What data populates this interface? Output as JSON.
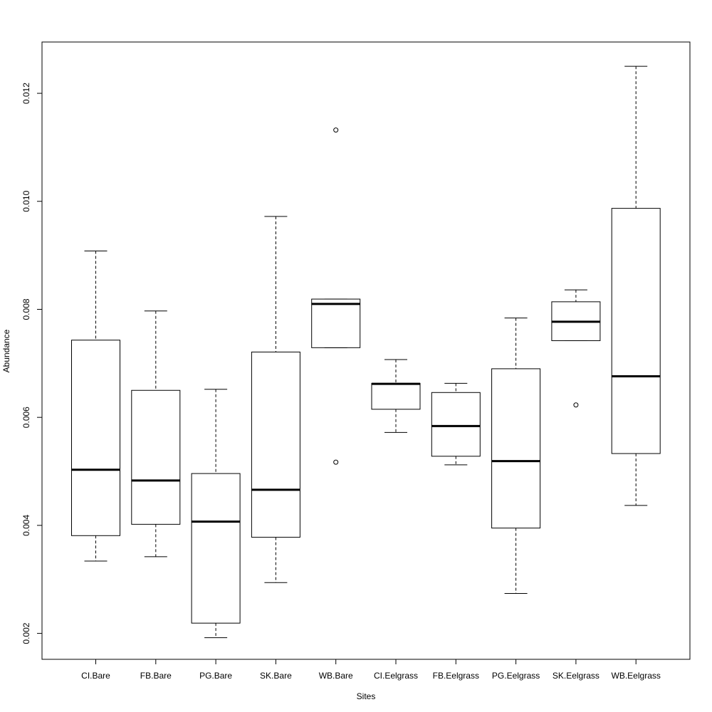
{
  "chart_data": {
    "type": "boxplot",
    "title": "",
    "xlabel": "Sites",
    "ylabel": "Abundance",
    "ylim": [
      0.00152,
      0.01295
    ],
    "yticks": [
      0.002,
      0.004,
      0.006,
      0.008,
      0.01,
      0.012
    ],
    "ytick_labels": [
      "0.002",
      "0.004",
      "0.006",
      "0.008",
      "0.010",
      "0.012"
    ],
    "grid": false,
    "categories": [
      "CI.Bare",
      "FB.Bare",
      "PG.Bare",
      "SK.Bare",
      "WB.Bare",
      "CI.Eelgrass",
      "FB.Eelgrass",
      "PG.Eelgrass",
      "SK.Eelgrass",
      "WB.Eelgrass"
    ],
    "boxes": [
      {
        "min": 0.00334,
        "q1": 0.00381,
        "median": 0.00503,
        "q3": 0.00743,
        "max": 0.00908,
        "outliers": []
      },
      {
        "min": 0.00342,
        "q1": 0.00402,
        "median": 0.00483,
        "q3": 0.0065,
        "max": 0.00797,
        "outliers": []
      },
      {
        "min": 0.00192,
        "q1": 0.00219,
        "median": 0.00407,
        "q3": 0.00496,
        "max": 0.00652,
        "outliers": []
      },
      {
        "min": 0.00294,
        "q1": 0.00378,
        "median": 0.00466,
        "q3": 0.00721,
        "max": 0.00972,
        "outliers": []
      },
      {
        "min": 0.00729,
        "q1": 0.00729,
        "median": 0.0081,
        "q3": 0.00819,
        "max": 0.00819,
        "outliers": [
          0.01132,
          0.00517
        ]
      },
      {
        "min": 0.00572,
        "q1": 0.00615,
        "median": 0.00662,
        "q3": 0.00663,
        "max": 0.00707,
        "outliers": []
      },
      {
        "min": 0.00512,
        "q1": 0.00528,
        "median": 0.00584,
        "q3": 0.00646,
        "max": 0.00663,
        "outliers": []
      },
      {
        "min": 0.00274,
        "q1": 0.00395,
        "median": 0.00519,
        "q3": 0.0069,
        "max": 0.00784,
        "outliers": []
      },
      {
        "min": 0.00742,
        "q1": 0.00742,
        "median": 0.00777,
        "q3": 0.00814,
        "max": 0.00836,
        "outliers": [
          0.00623
        ]
      },
      {
        "min": 0.00437,
        "q1": 0.00533,
        "median": 0.00676,
        "q3": 0.00987,
        "max": 0.0125,
        "outliers": []
      }
    ]
  }
}
